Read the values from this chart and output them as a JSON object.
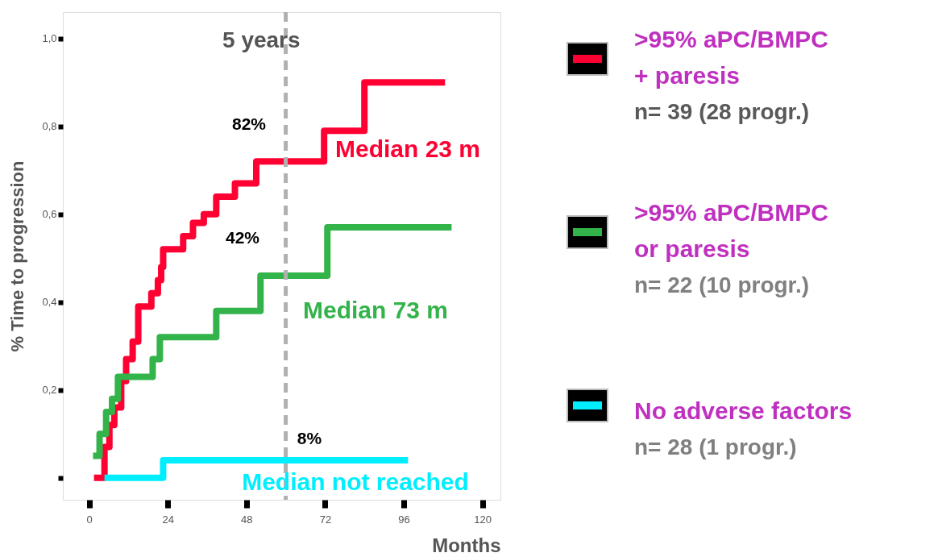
{
  "chart_data": {
    "type": "step",
    "xlabel": "Months",
    "ylabel": "% Time to progression",
    "xlim": [
      -8,
      125.5
    ],
    "ylim": [
      -0.05,
      1.06
    ],
    "xticks": [
      0,
      24,
      48,
      72,
      96,
      120
    ],
    "yticks": [
      {
        "value": 0,
        "label": null
      },
      {
        "value": 0.2,
        "label": "0,2"
      },
      {
        "value": 0.4,
        "label": "0,4"
      },
      {
        "value": 0.6,
        "label": "0,6"
      },
      {
        "value": 0.8,
        "label": "0,8"
      },
      {
        "value": 1.0,
        "label": "1,0"
      }
    ],
    "grid": false,
    "legend": "right",
    "marker": "none",
    "line_style": "solid",
    "series": [
      {
        "name": ">95% aPC/BMPC\n+ paresis",
        "color": "#ff0033",
        "x": [
          1.5,
          4.7,
          6.2,
          7.7,
          9.8,
          11.3,
          13.3,
          15,
          19,
          21,
          22,
          22.6,
          28.7,
          31.7,
          35,
          38.8,
          44.5,
          51,
          71.7,
          84,
          108.6
        ],
        "values": [
          0,
          0.07,
          0.12,
          0.16,
          0.22,
          0.27,
          0.31,
          0.39,
          0.42,
          0.45,
          0.48,
          0.52,
          0.55,
          0.58,
          0.6,
          0.64,
          0.67,
          0.72,
          0.79,
          0.9,
          0.9
        ]
      },
      {
        "name": ">95% aPC/BMPC\nor paresis",
        "color": "#33b44a",
        "x": [
          1.2,
          3.2,
          5.2,
          7,
          8.8,
          19.4,
          21.6,
          38.8,
          52.3,
          72.7,
          110.6
        ],
        "values": [
          0.05,
          0.1,
          0.15,
          0.18,
          0.23,
          0.27,
          0.32,
          0.38,
          0.46,
          0.57,
          0.57
        ]
      },
      {
        "name": "No adverse factors",
        "color": "#00eeff",
        "x": [
          4.7,
          22.6,
          97.3
        ],
        "values": [
          0,
          0.04,
          0.04
        ]
      }
    ],
    "ref_lines": [
      {
        "axis": "x",
        "value": 60,
        "label": "5 years",
        "color": "#b0b0b0",
        "line_style": "dashed"
      }
    ],
    "annotations": [
      "82%",
      "42%",
      "8%",
      "Median 23 m",
      "Median 73 m",
      "Median not reached",
      "n= 39 (28 progr.)",
      "n= 22 (10 progr.)",
      "n= 28 (1 progr.)"
    ]
  }
}
